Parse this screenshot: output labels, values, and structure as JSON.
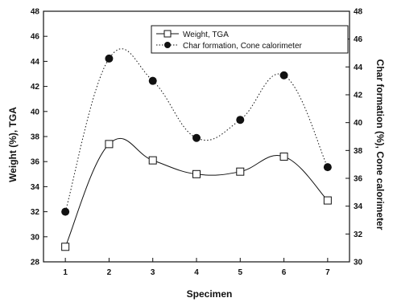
{
  "chart_data": {
    "type": "line",
    "x": [
      1,
      2,
      3,
      4,
      5,
      6,
      7
    ],
    "xlabel": "Specimen",
    "xlim": [
      0.5,
      7.5
    ],
    "xticks": [
      1,
      2,
      3,
      4,
      5,
      6,
      7
    ],
    "ylabel_left": "Weight (%), TGA",
    "ylim_left": [
      28,
      48
    ],
    "yticks_left": [
      28,
      30,
      32,
      34,
      36,
      38,
      40,
      42,
      44,
      46,
      48
    ],
    "ylabel_right": "Char formation (%), Cone calorimeter",
    "ylim_right": [
      30,
      48
    ],
    "yticks_right": [
      30,
      32,
      34,
      36,
      38,
      40,
      42,
      44,
      46,
      48
    ],
    "grid": false,
    "legend_position": "top-right",
    "series": [
      {
        "name": "Weight, TGA",
        "axis": "left",
        "marker": "open-square",
        "line": "solid",
        "values": [
          29.2,
          37.4,
          36.1,
          35.0,
          35.2,
          36.4,
          32.9
        ]
      },
      {
        "name": "Char formation, Cone calorimeter",
        "axis": "right",
        "marker": "filled-circle",
        "line": "dotted",
        "values": [
          33.6,
          44.6,
          43.0,
          38.9,
          40.2,
          43.4,
          36.8
        ]
      }
    ],
    "colors": {
      "ink": "#111111",
      "background": "#ffffff"
    }
  }
}
